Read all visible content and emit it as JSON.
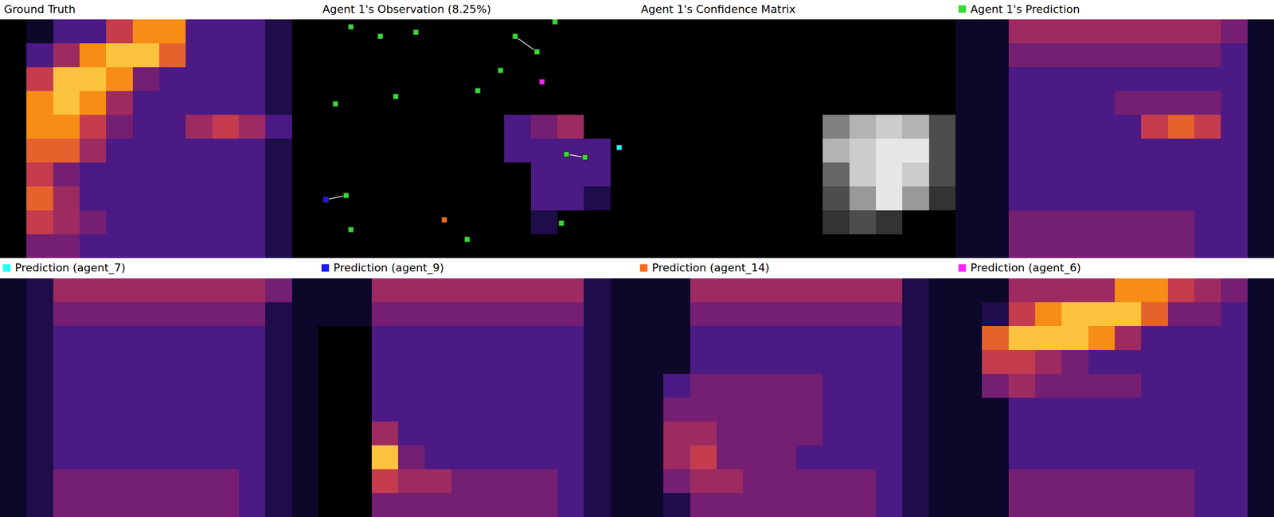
{
  "chart_data": [
    {
      "type": "heatmap",
      "title": "Ground Truth",
      "xlim": [
        0,
        12
      ],
      "ylim": [
        0,
        10
      ],
      "zlim": [
        0,
        10
      ],
      "tick_labels": false,
      "z": [
        [
          0,
          1,
          3,
          3,
          6,
          8,
          8,
          3,
          3,
          3,
          2,
          0
        ],
        [
          0,
          3,
          5,
          8,
          9,
          9,
          7,
          3,
          3,
          3,
          2,
          0
        ],
        [
          0,
          6,
          9,
          9,
          8,
          4,
          3,
          3,
          3,
          3,
          2,
          0
        ],
        [
          0,
          8,
          9,
          8,
          5,
          3,
          3,
          3,
          3,
          3,
          2,
          0
        ],
        [
          0,
          8,
          8,
          6,
          4,
          3,
          3,
          5,
          6,
          5,
          3,
          0
        ],
        [
          0,
          7,
          7,
          5,
          3,
          3,
          3,
          3,
          3,
          3,
          2,
          0
        ],
        [
          0,
          6,
          4,
          3,
          3,
          3,
          3,
          3,
          3,
          3,
          2,
          0
        ],
        [
          0,
          7,
          5,
          3,
          3,
          3,
          3,
          3,
          3,
          3,
          2,
          0
        ],
        [
          0,
          6,
          5,
          4,
          3,
          3,
          3,
          3,
          3,
          3,
          2,
          0
        ],
        [
          0,
          4,
          4,
          3,
          3,
          3,
          3,
          3,
          3,
          3,
          2,
          0
        ]
      ]
    },
    {
      "type": "heatmap",
      "title": "Agent 1's Observation (8.25%)",
      "xlim": [
        0,
        12
      ],
      "ylim": [
        0,
        10
      ],
      "zlim": [
        0,
        10
      ],
      "tick_labels": false,
      "z": [
        [
          0,
          0,
          0,
          0,
          0,
          0,
          0,
          0,
          0,
          0,
          0,
          0
        ],
        [
          0,
          0,
          0,
          0,
          0,
          0,
          0,
          0,
          0,
          0,
          0,
          0
        ],
        [
          0,
          0,
          0,
          0,
          0,
          0,
          0,
          0,
          0,
          0,
          0,
          0
        ],
        [
          0,
          0,
          0,
          0,
          0,
          0,
          0,
          0,
          0,
          0,
          0,
          0
        ],
        [
          0,
          0,
          0,
          0,
          0,
          0,
          0,
          3,
          4,
          5,
          0,
          0
        ],
        [
          0,
          0,
          0,
          0,
          0,
          0,
          0,
          3,
          3,
          3,
          3,
          0
        ],
        [
          0,
          0,
          0,
          0,
          0,
          0,
          0,
          0,
          3,
          3,
          3,
          0
        ],
        [
          0,
          0,
          0,
          0,
          0,
          0,
          0,
          0,
          3,
          3,
          2,
          0
        ],
        [
          0,
          0,
          0,
          0,
          0,
          0,
          0,
          0,
          2,
          0,
          0,
          0
        ],
        [
          0,
          0,
          0,
          0,
          0,
          0,
          0,
          0,
          0,
          0,
          0,
          0
        ]
      ],
      "points": [
        {
          "x": 1.22,
          "y": 0.31,
          "color": "#33dd33"
        },
        {
          "x": 2.33,
          "y": 0.71,
          "color": "#33dd33"
        },
        {
          "x": 3.67,
          "y": 0.54,
          "color": "#33dd33"
        },
        {
          "x": 8.91,
          "y": 0.1,
          "color": "#33dd33"
        },
        {
          "x": 7.41,
          "y": 0.71,
          "color": "#33dd33"
        },
        {
          "x": 8.23,
          "y": 1.36,
          "color": "#33dd33"
        },
        {
          "x": 6.86,
          "y": 2.14,
          "color": "#33dd33"
        },
        {
          "x": 6.0,
          "y": 2.99,
          "color": "#33dd33"
        },
        {
          "x": 2.91,
          "y": 3.23,
          "color": "#33dd33"
        },
        {
          "x": 0.64,
          "y": 3.54,
          "color": "#33dd33"
        },
        {
          "x": 9.34,
          "y": 5.65,
          "color": "#33dd33"
        },
        {
          "x": 10.04,
          "y": 5.78,
          "color": "#33dd33"
        },
        {
          "x": 1.04,
          "y": 7.38,
          "color": "#33dd33"
        },
        {
          "x": 1.22,
          "y": 8.81,
          "color": "#33dd33"
        },
        {
          "x": 5.6,
          "y": 9.22,
          "color": "#33dd33"
        },
        {
          "x": 9.15,
          "y": 8.54,
          "color": "#33dd33"
        },
        {
          "x": 11.33,
          "y": 5.37,
          "color": "#22ffff"
        },
        {
          "x": 0.28,
          "y": 7.55,
          "color": "#1a1aff"
        },
        {
          "x": 4.74,
          "y": 8.4,
          "color": "#ff6a1a"
        },
        {
          "x": 8.42,
          "y": 2.62,
          "color": "#ff22ff"
        }
      ],
      "links": [
        [
          4,
          5
        ],
        [
          10,
          11
        ],
        [
          17,
          12
        ]
      ]
    },
    {
      "type": "confidence",
      "title": "Agent 1's Confidence Matrix",
      "xlim": [
        0,
        12
      ],
      "ylim": [
        0,
        10
      ],
      "zlim": [
        0,
        10
      ],
      "tick_labels": false,
      "z": [
        [
          0,
          0,
          0,
          0,
          0,
          0,
          0,
          0,
          0,
          0,
          0,
          0
        ],
        [
          0,
          0,
          0,
          0,
          0,
          0,
          0,
          0,
          0,
          0,
          0,
          0
        ],
        [
          0,
          0,
          0,
          0,
          0,
          0,
          0,
          0,
          0,
          0,
          0,
          0
        ],
        [
          0,
          0,
          0,
          0,
          0,
          0,
          0,
          0,
          0,
          0,
          0,
          0
        ],
        [
          0,
          0,
          0,
          0,
          0,
          0,
          0,
          5,
          7,
          8,
          7,
          3
        ],
        [
          0,
          0,
          0,
          0,
          0,
          0,
          0,
          7,
          8,
          9,
          9,
          3
        ],
        [
          0,
          0,
          0,
          0,
          0,
          0,
          0,
          4,
          8,
          9,
          8,
          3
        ],
        [
          0,
          0,
          0,
          0,
          0,
          0,
          0,
          3,
          6,
          9,
          6,
          2
        ],
        [
          0,
          0,
          0,
          0,
          0,
          0,
          0,
          2,
          3,
          2,
          0,
          0
        ],
        [
          0,
          0,
          0,
          0,
          0,
          0,
          0,
          0,
          0,
          0,
          0,
          0
        ]
      ]
    },
    {
      "type": "heatmap",
      "title": "Agent 1's Prediction",
      "color": "#33dd33",
      "xlim": [
        0,
        12
      ],
      "ylim": [
        0,
        10
      ],
      "zlim": [
        0,
        10
      ],
      "tick_labels": false,
      "z": [
        [
          1,
          1,
          5,
          5,
          5,
          5,
          5,
          5,
          5,
          5,
          4,
          1
        ],
        [
          1,
          1,
          4,
          4,
          4,
          4,
          4,
          4,
          4,
          4,
          3,
          1
        ],
        [
          1,
          1,
          3,
          3,
          3,
          3,
          3,
          3,
          3,
          3,
          3,
          1
        ],
        [
          1,
          1,
          3,
          3,
          3,
          3,
          4,
          4,
          4,
          4,
          3,
          1
        ],
        [
          1,
          1,
          3,
          3,
          3,
          3,
          3,
          6,
          7,
          6,
          3,
          1
        ],
        [
          1,
          1,
          3,
          3,
          3,
          3,
          3,
          3,
          3,
          3,
          3,
          1
        ],
        [
          1,
          1,
          3,
          3,
          3,
          3,
          3,
          3,
          3,
          3,
          3,
          1
        ],
        [
          1,
          1,
          3,
          3,
          3,
          3,
          3,
          3,
          3,
          3,
          3,
          1
        ],
        [
          1,
          1,
          4,
          4,
          4,
          4,
          4,
          4,
          4,
          3,
          3,
          1
        ],
        [
          1,
          1,
          4,
          4,
          4,
          4,
          4,
          4,
          4,
          3,
          3,
          1
        ]
      ]
    },
    {
      "type": "heatmap",
      "title": "Prediction (agent_7)",
      "color": "#22ffff",
      "xlim": [
        0,
        12
      ],
      "ylim": [
        0,
        10
      ],
      "zlim": [
        0,
        10
      ],
      "tick_labels": false,
      "z": [
        [
          1,
          2,
          5,
          5,
          5,
          5,
          5,
          5,
          5,
          5,
          4,
          1
        ],
        [
          1,
          2,
          4,
          4,
          4,
          4,
          4,
          4,
          4,
          4,
          2,
          1
        ],
        [
          1,
          2,
          3,
          3,
          3,
          3,
          3,
          3,
          3,
          3,
          2,
          1
        ],
        [
          1,
          2,
          3,
          3,
          3,
          3,
          3,
          3,
          3,
          3,
          2,
          1
        ],
        [
          1,
          2,
          3,
          3,
          3,
          3,
          3,
          3,
          3,
          3,
          2,
          1
        ],
        [
          1,
          2,
          3,
          3,
          3,
          3,
          3,
          3,
          3,
          3,
          2,
          1
        ],
        [
          1,
          2,
          3,
          3,
          3,
          3,
          3,
          3,
          3,
          3,
          2,
          1
        ],
        [
          1,
          2,
          3,
          3,
          3,
          3,
          3,
          3,
          3,
          3,
          2,
          1
        ],
        [
          1,
          2,
          4,
          4,
          4,
          4,
          4,
          4,
          4,
          3,
          2,
          1
        ],
        [
          1,
          2,
          4,
          4,
          4,
          4,
          4,
          4,
          4,
          3,
          2,
          1
        ]
      ]
    },
    {
      "type": "heatmap",
      "title": "Prediction (agent_9)",
      "color": "#1a1aff",
      "xlim": [
        0,
        12
      ],
      "ylim": [
        0,
        10
      ],
      "zlim": [
        0,
        10
      ],
      "tick_labels": false,
      "z": [
        [
          1,
          1,
          5,
          5,
          5,
          5,
          5,
          5,
          5,
          5,
          2,
          1
        ],
        [
          1,
          1,
          4,
          4,
          4,
          4,
          4,
          4,
          4,
          4,
          2,
          1
        ],
        [
          0,
          0,
          3,
          3,
          3,
          3,
          3,
          3,
          3,
          3,
          2,
          1
        ],
        [
          0,
          0,
          3,
          3,
          3,
          3,
          3,
          3,
          3,
          3,
          2,
          1
        ],
        [
          0,
          0,
          3,
          3,
          3,
          3,
          3,
          3,
          3,
          3,
          2,
          1
        ],
        [
          0,
          0,
          3,
          3,
          3,
          3,
          3,
          3,
          3,
          3,
          2,
          1
        ],
        [
          0,
          0,
          5,
          3,
          3,
          3,
          3,
          3,
          3,
          3,
          2,
          1
        ],
        [
          0,
          0,
          9,
          4,
          3,
          3,
          3,
          3,
          3,
          3,
          2,
          1
        ],
        [
          0,
          0,
          6,
          5,
          5,
          4,
          4,
          4,
          4,
          3,
          2,
          1
        ],
        [
          0,
          0,
          4,
          4,
          4,
          4,
          4,
          4,
          4,
          3,
          2,
          1
        ]
      ]
    },
    {
      "type": "heatmap",
      "title": "Prediction (agent_14)",
      "color": "#ff6a1a",
      "xlim": [
        0,
        12
      ],
      "ylim": [
        0,
        10
      ],
      "zlim": [
        0,
        10
      ],
      "tick_labels": false,
      "z": [
        [
          1,
          1,
          5,
          5,
          5,
          5,
          5,
          5,
          5,
          5,
          2,
          1
        ],
        [
          1,
          1,
          4,
          4,
          4,
          4,
          4,
          4,
          4,
          4,
          2,
          1
        ],
        [
          1,
          1,
          3,
          3,
          3,
          3,
          3,
          3,
          3,
          3,
          2,
          1
        ],
        [
          1,
          1,
          3,
          3,
          3,
          3,
          3,
          3,
          3,
          3,
          2,
          1
        ],
        [
          1,
          3,
          4,
          4,
          4,
          4,
          4,
          3,
          3,
          3,
          2,
          1
        ],
        [
          1,
          4,
          4,
          4,
          4,
          4,
          4,
          3,
          3,
          3,
          2,
          1
        ],
        [
          1,
          5,
          5,
          4,
          4,
          4,
          4,
          3,
          3,
          3,
          2,
          1
        ],
        [
          1,
          5,
          6,
          4,
          4,
          4,
          3,
          3,
          3,
          3,
          2,
          1
        ],
        [
          1,
          4,
          5,
          5,
          4,
          4,
          4,
          4,
          4,
          3,
          2,
          1
        ],
        [
          1,
          2,
          4,
          4,
          4,
          4,
          4,
          4,
          4,
          3,
          2,
          1
        ]
      ]
    },
    {
      "type": "heatmap",
      "title": "Prediction (agent_6)",
      "color": "#ff22ff",
      "xlim": [
        0,
        12
      ],
      "ylim": [
        0,
        10
      ],
      "zlim": [
        0,
        10
      ],
      "tick_labels": false,
      "z": [
        [
          1,
          1,
          5,
          5,
          5,
          5,
          8,
          8,
          6,
          5,
          4,
          1
        ],
        [
          1,
          2,
          6,
          8,
          9,
          9,
          9,
          7,
          4,
          4,
          3,
          1
        ],
        [
          1,
          7,
          9,
          9,
          9,
          8,
          5,
          3,
          3,
          3,
          3,
          1
        ],
        [
          1,
          6,
          6,
          5,
          4,
          3,
          3,
          3,
          3,
          3,
          3,
          1
        ],
        [
          1,
          4,
          5,
          4,
          4,
          4,
          4,
          3,
          3,
          3,
          3,
          1
        ],
        [
          1,
          1,
          3,
          3,
          3,
          3,
          3,
          3,
          3,
          3,
          3,
          1
        ],
        [
          1,
          1,
          3,
          3,
          3,
          3,
          3,
          3,
          3,
          3,
          3,
          1
        ],
        [
          1,
          1,
          3,
          3,
          3,
          3,
          3,
          3,
          3,
          3,
          3,
          1
        ],
        [
          1,
          1,
          4,
          4,
          4,
          4,
          4,
          4,
          4,
          3,
          3,
          1
        ],
        [
          1,
          1,
          4,
          4,
          4,
          4,
          4,
          4,
          4,
          3,
          3,
          1
        ]
      ]
    }
  ]
}
